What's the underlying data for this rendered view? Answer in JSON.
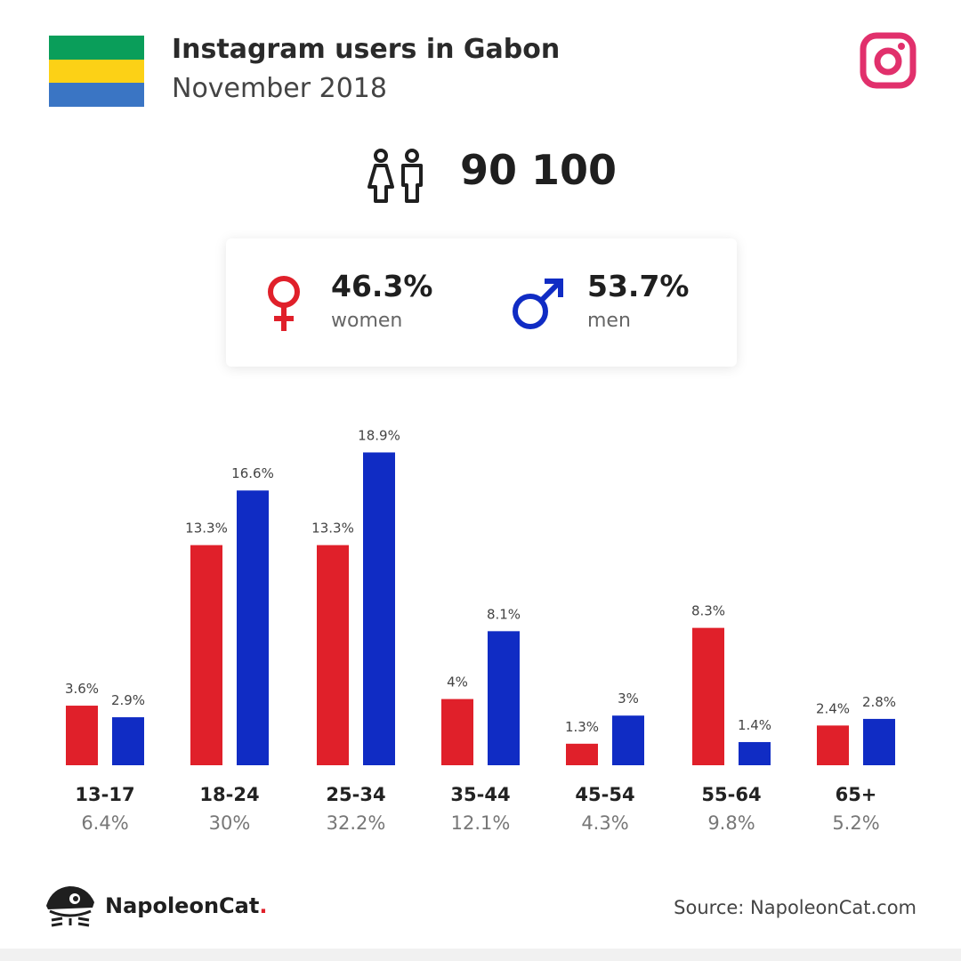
{
  "header": {
    "title": "Instagram users in Gabon",
    "subtitle": "November 2018",
    "flag_colors": [
      "#0a9e5a",
      "#fcd116",
      "#3a75c4"
    ],
    "instagram_icon": "instagram-icon",
    "instagram_color": "#e1306c"
  },
  "total": {
    "icon": "people-icon",
    "value": "90 100"
  },
  "gender": {
    "women": {
      "icon": "female-symbol-icon",
      "pct": "46.3%",
      "label": "women",
      "color": "#e0202a"
    },
    "men": {
      "icon": "male-symbol-icon",
      "pct": "53.7%",
      "label": "men",
      "color": "#102cc4"
    }
  },
  "chart_data": {
    "type": "bar",
    "categories": [
      "13-17",
      "18-24",
      "25-34",
      "35-44",
      "45-54",
      "55-64",
      "65+"
    ],
    "category_totals": [
      "6.4%",
      "30%",
      "32.2%",
      "12.1%",
      "4.3%",
      "9.8%",
      "5.2%"
    ],
    "series": [
      {
        "color": "#e0202a",
        "values": [
          3.6,
          13.3,
          13.3,
          4,
          1.3,
          8.3,
          2.4
        ],
        "labels": [
          "3.6%",
          "13.3%",
          "13.3%",
          "4%",
          "1.3%",
          "8.3%",
          "2.4%"
        ]
      },
      {
        "color": "#102cc4",
        "values": [
          2.9,
          16.6,
          18.9,
          8.1,
          3,
          1.4,
          2.8
        ],
        "labels": [
          "2.9%",
          "16.6%",
          "18.9%",
          "8.1%",
          "3%",
          "1.4%",
          "2.8%"
        ]
      }
    ],
    "ylim": [
      0,
      19
    ]
  },
  "footer": {
    "brand": "NapoleonCat",
    "brand_dot": ".",
    "logo_icon": "napoleoncat-logo-icon",
    "source": "Source: NapoleonCat.com"
  }
}
